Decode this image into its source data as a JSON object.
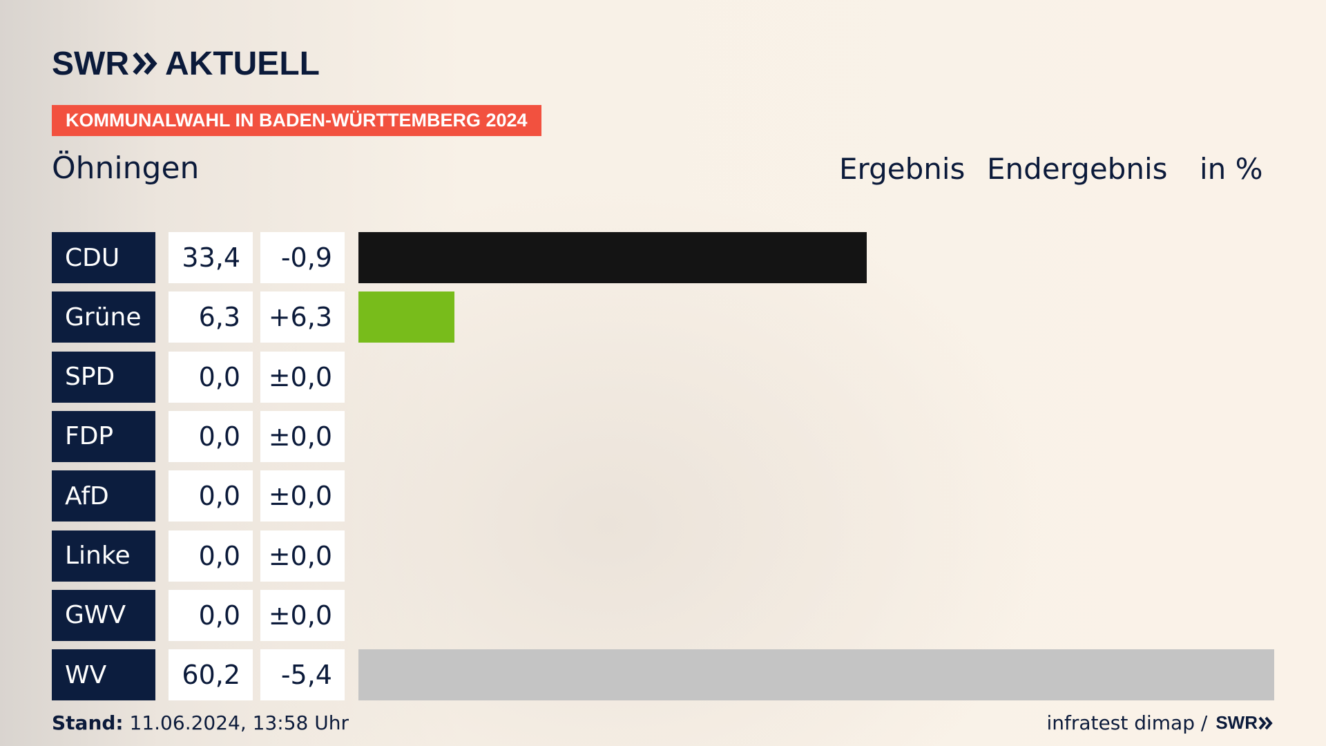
{
  "header": {
    "brand": "SWR",
    "brand_word": "AKTUELL",
    "tag": "KOMMUNALWAHL IN BADEN-WÜRTTEMBERG 2024",
    "place": "Öhningen",
    "col_result": "Ergebnis",
    "col_status": "Endergebnis",
    "col_unit": "in %"
  },
  "chart_data": {
    "type": "bar",
    "orientation": "horizontal",
    "categories": [
      "CDU",
      "Grüne",
      "SPD",
      "FDP",
      "AfD",
      "Linke",
      "GWV",
      "WV"
    ],
    "values": [
      33.4,
      6.3,
      0.0,
      0.0,
      0.0,
      0.0,
      0.0,
      60.2
    ],
    "value_labels": [
      "33,4",
      "6,3",
      "0,0",
      "0,0",
      "0,0",
      "0,0",
      "0,0",
      "60,2"
    ],
    "diff_labels": [
      "-0,9",
      "+6,3",
      "±0,0",
      "±0,0",
      "±0,0",
      "±0,0",
      "±0,0",
      "-5,4"
    ],
    "colors": [
      "#141414",
      "#78bc1b",
      "#e3000f",
      "#ffe000",
      "#009ee0",
      "#be3075",
      "#c4c4c4",
      "#c4c4c4"
    ],
    "xlim": [
      0,
      60.2
    ]
  },
  "footer": {
    "stand_label": "Stand:",
    "stand_value": "11.06.2024, 13:58 Uhr",
    "source": "infratest dimap /",
    "source_brand": "SWR"
  }
}
